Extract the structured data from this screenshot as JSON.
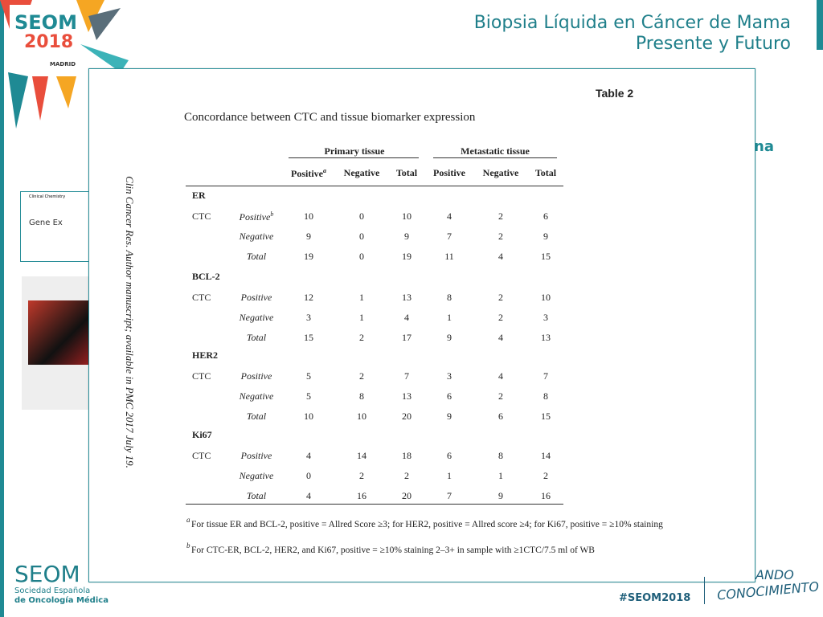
{
  "header": {
    "title": "Biopsia Líquida en Cáncer de Mama",
    "subtitle": "Presente y Futuro"
  },
  "logo": {
    "name": "SEOM",
    "year": "2018",
    "city": "MADRID"
  },
  "background": {
    "fragment": "na",
    "paper_journal": "Clinical Chemistry",
    "paper_title": "Gene Ex"
  },
  "figure": {
    "label": "Table 2",
    "title": "Concordance between CTC and tissue biomarker expression",
    "side_note": "Clin Cancer Res. Author manuscript; available in PMC 2017 July 19.",
    "column_groups": [
      "Primary tissue",
      "Metastatic tissue"
    ],
    "columns": [
      "Positive",
      "Negative",
      "Total",
      "Positive",
      "Negative",
      "Total"
    ],
    "columns_note": "a",
    "groups": [
      {
        "name": "ER",
        "source": "CTC",
        "rows": [
          {
            "label": "Positive",
            "note": "b",
            "values": [
              10,
              0,
              10,
              4,
              2,
              6
            ]
          },
          {
            "label": "Negative",
            "values": [
              9,
              0,
              9,
              7,
              2,
              9
            ]
          },
          {
            "label": "Total",
            "values": [
              19,
              0,
              19,
              11,
              4,
              15
            ]
          }
        ]
      },
      {
        "name": "BCL-2",
        "source": "CTC",
        "rows": [
          {
            "label": "Positive",
            "values": [
              12,
              1,
              13,
              8,
              2,
              10
            ]
          },
          {
            "label": "Negative",
            "values": [
              3,
              1,
              4,
              1,
              2,
              3
            ]
          },
          {
            "label": "Total",
            "values": [
              15,
              2,
              17,
              9,
              4,
              13
            ]
          }
        ]
      },
      {
        "name": "HER2",
        "source": "CTC",
        "rows": [
          {
            "label": "Positive",
            "values": [
              5,
              2,
              7,
              3,
              4,
              7
            ]
          },
          {
            "label": "Negative",
            "values": [
              5,
              8,
              13,
              6,
              2,
              8
            ]
          },
          {
            "label": "Total",
            "values": [
              10,
              10,
              20,
              9,
              6,
              15
            ]
          }
        ]
      },
      {
        "name": "Ki67",
        "source": "CTC",
        "rows": [
          {
            "label": "Positive",
            "values": [
              4,
              14,
              18,
              6,
              8,
              14
            ]
          },
          {
            "label": "Negative",
            "values": [
              0,
              2,
              2,
              1,
              1,
              2
            ]
          },
          {
            "label": "Total",
            "values": [
              4,
              16,
              20,
              7,
              9,
              16
            ]
          }
        ]
      }
    ],
    "footnotes": [
      {
        "mark": "a",
        "text": "For tissue ER and BCL-2, positive = Allred Score ≥3; for HER2, positive = Allred score ≥4; for Ki67, positive = ≥10% staining"
      },
      {
        "mark": "b",
        "text": "For CTC-ER, BCL-2, HER2, and Ki67, positive = ≥10% staining 2–3+ in sample with ≥1CTC/7.5 ml of WB"
      }
    ]
  },
  "footer": {
    "society": "SEOM",
    "society_line1": "Sociedad Española",
    "society_line2": "de Oncología Médica",
    "hashtag": "#SEOM2018",
    "slogan_top": "ANDO",
    "slogan_bottom": "CONOCIMIENTO"
  }
}
